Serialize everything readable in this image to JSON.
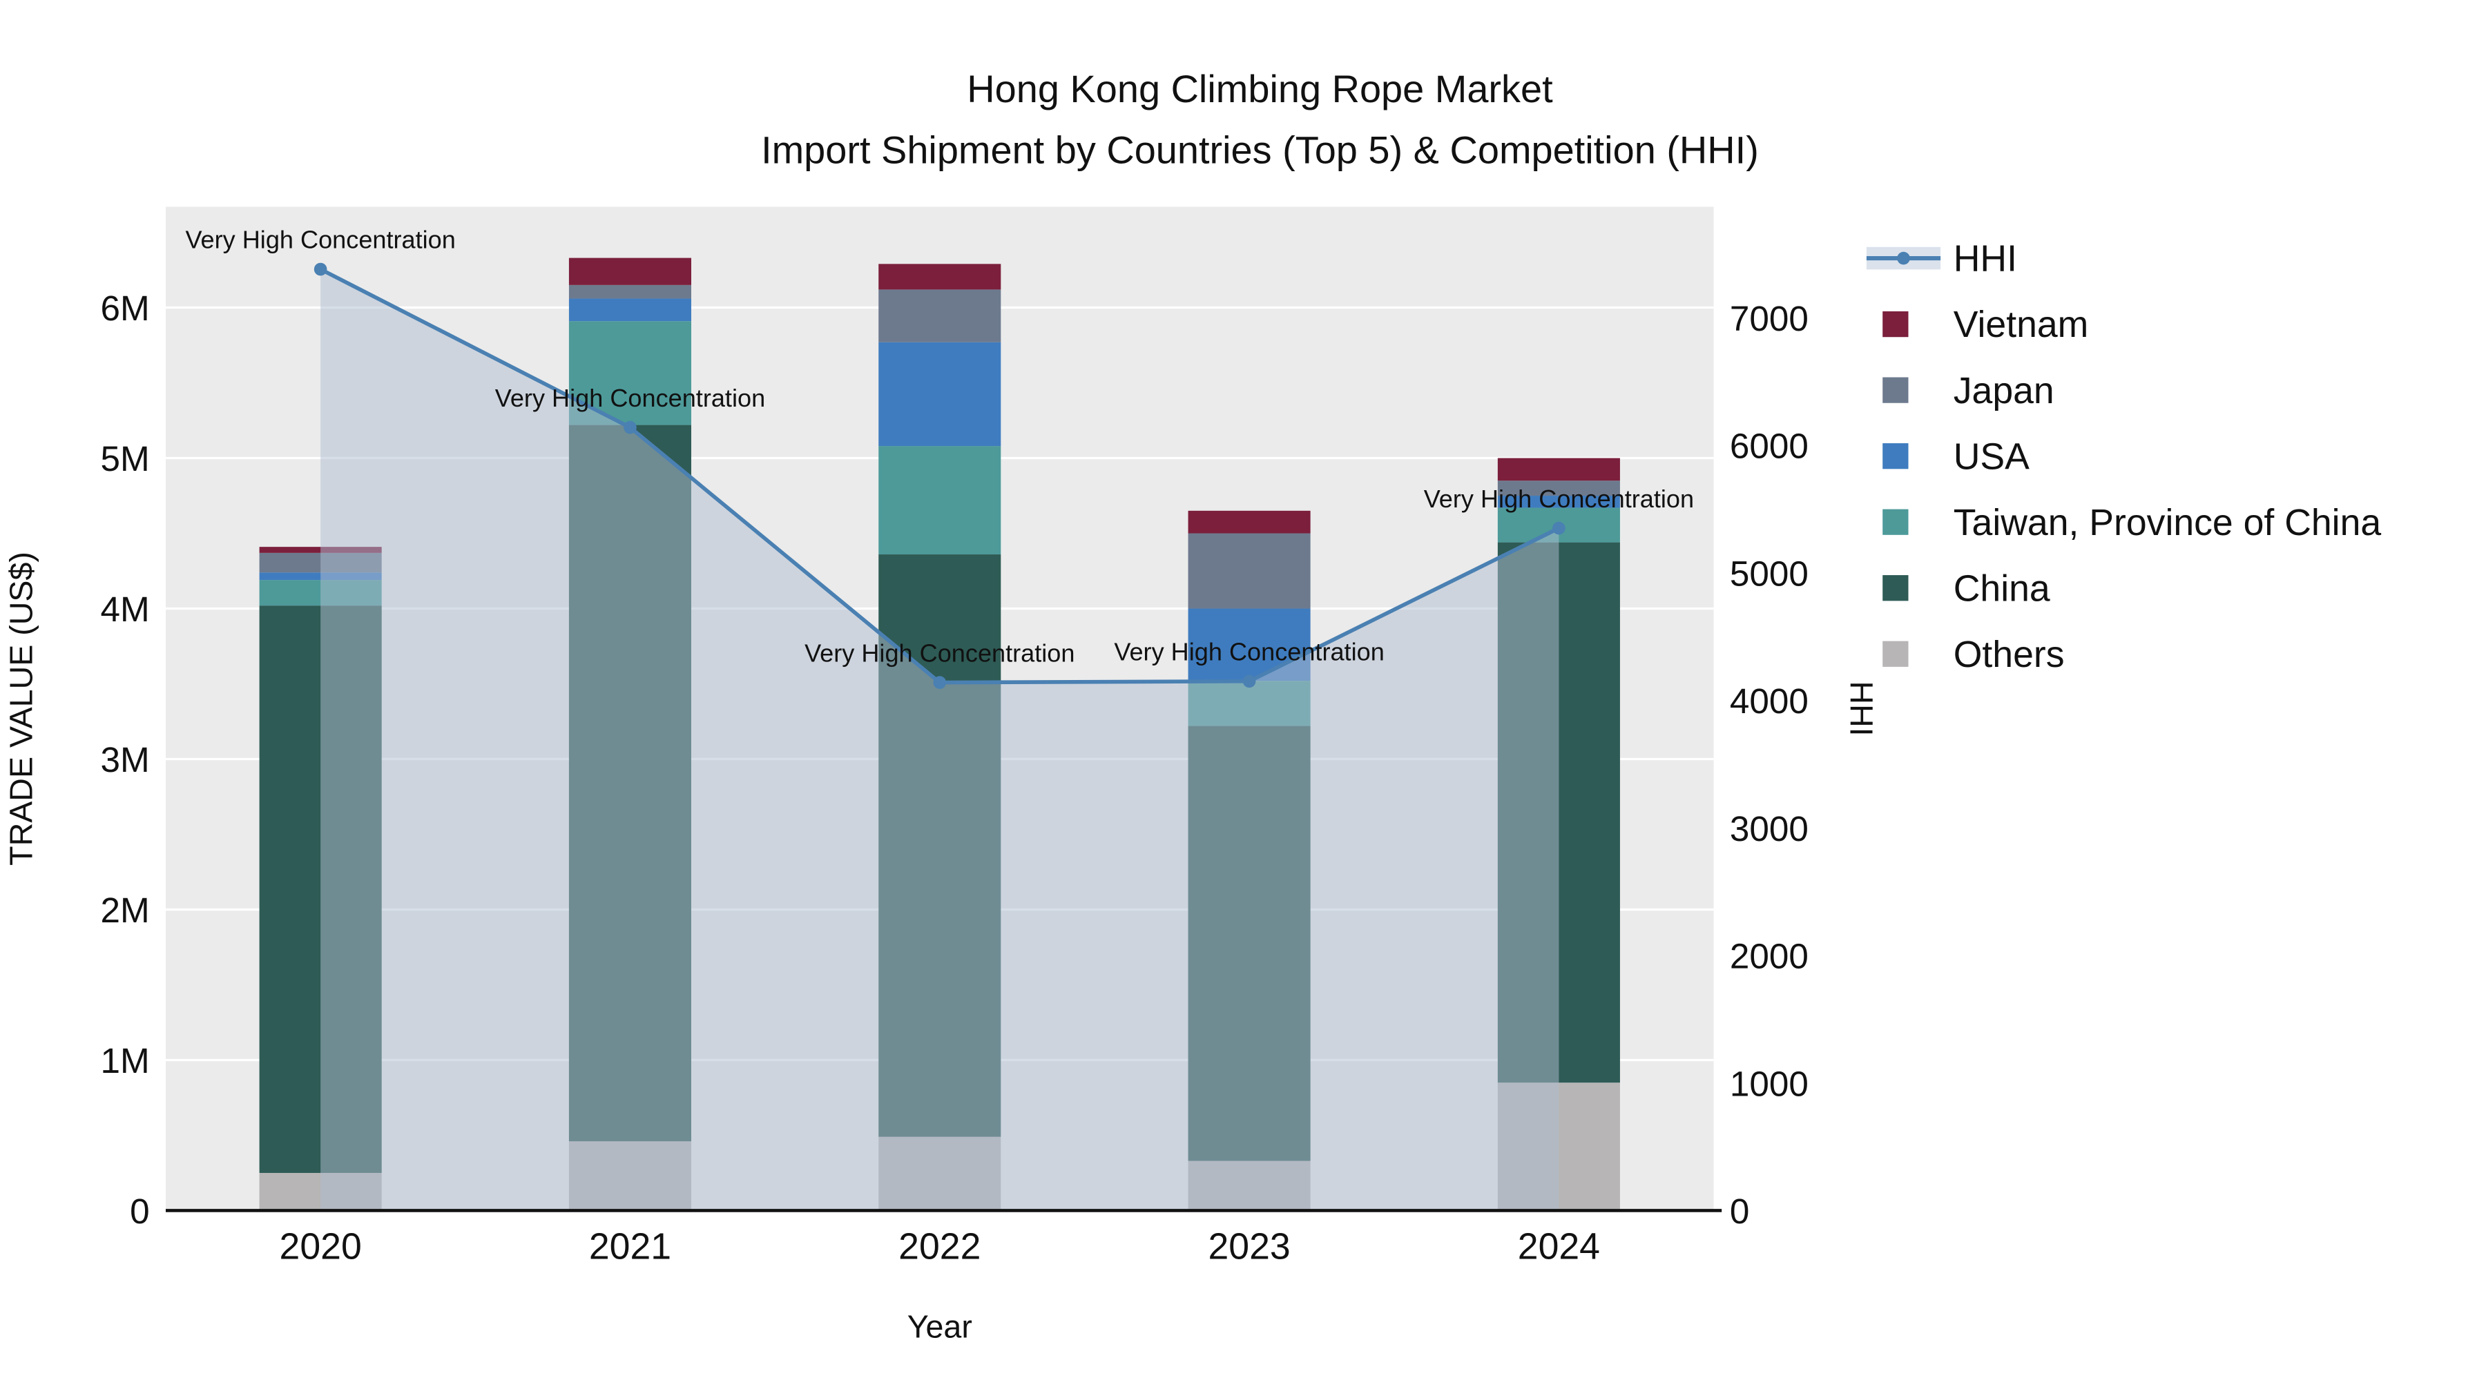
{
  "chart_data": {
    "type": "bar",
    "title": "Hong Kong Climbing Rope Market",
    "subtitle": "Import Shipment by Countries (Top 5) & Competition (HHI)",
    "xlabel": "Year",
    "ylabel_left": "TRADE VALUE (US$)",
    "ylabel_right": "HHI",
    "categories": [
      "2020",
      "2021",
      "2022",
      "2023",
      "2024"
    ],
    "bar_value_unit": "M US$",
    "series": [
      {
        "name": "Others",
        "color": "#b7b5b5",
        "values": [
          0.25,
          0.46,
          0.49,
          0.33,
          0.85
        ]
      },
      {
        "name": "China",
        "color": "#2e5b55",
        "values": [
          3.77,
          4.76,
          3.87,
          2.89,
          3.59
        ]
      },
      {
        "name": "Taiwan, Province of China",
        "color": "#4d9a99",
        "values": [
          0.17,
          0.69,
          0.72,
          0.3,
          0.23
        ]
      },
      {
        "name": "USA",
        "color": "#3f7cbf",
        "values": [
          0.05,
          0.15,
          0.69,
          0.48,
          0.08
        ]
      },
      {
        "name": "Japan",
        "color": "#6d7a8e",
        "values": [
          0.13,
          0.09,
          0.35,
          0.5,
          0.1
        ]
      },
      {
        "name": "Vietnam",
        "color": "#7b1f3c",
        "values": [
          0.04,
          0.18,
          0.17,
          0.15,
          0.15
        ]
      }
    ],
    "hhi": {
      "name": "HHI",
      "color": "#4a80b2",
      "fill_color": "#b0bdd1",
      "fill_opacity": 0.5,
      "values": [
        7380,
        6140,
        4140,
        4150,
        5350
      ]
    },
    "annotations": [
      "Very High Concentration",
      "Very High Concentration",
      "Very High Concentration",
      "Very High Concentration",
      "Very High Concentration"
    ],
    "yticks_left": {
      "labels": [
        "0",
        "1M",
        "2M",
        "3M",
        "4M",
        "5M",
        "6M"
      ],
      "values": [
        0,
        1,
        2,
        3,
        4,
        5,
        6
      ]
    },
    "yticks_right": {
      "labels": [
        "0",
        "1000",
        "2000",
        "3000",
        "4000",
        "5000",
        "6000",
        "7000"
      ],
      "values": [
        0,
        1000,
        2000,
        3000,
        4000,
        5000,
        6000,
        7000
      ]
    },
    "ylim_left": [
      0,
      6.67
    ],
    "ylim_right": [
      0,
      7870
    ],
    "legend": [
      {
        "label": "HHI",
        "type": "line",
        "color": "#4a80b2"
      },
      {
        "label": "Vietnam",
        "type": "square",
        "color": "#7b1f3c"
      },
      {
        "label": "Japan",
        "type": "square",
        "color": "#6d7a8e"
      },
      {
        "label": "USA",
        "type": "square",
        "color": "#3f7cbf"
      },
      {
        "label": "Taiwan, Province of China",
        "type": "square",
        "color": "#4d9a99"
      },
      {
        "label": "China",
        "type": "square",
        "color": "#2e5b55"
      },
      {
        "label": "Others",
        "type": "square",
        "color": "#b7b5b5"
      }
    ],
    "plot_bg": "#ebebeb",
    "grid_color": "#ffffff",
    "axis_line_color": "#111111"
  }
}
